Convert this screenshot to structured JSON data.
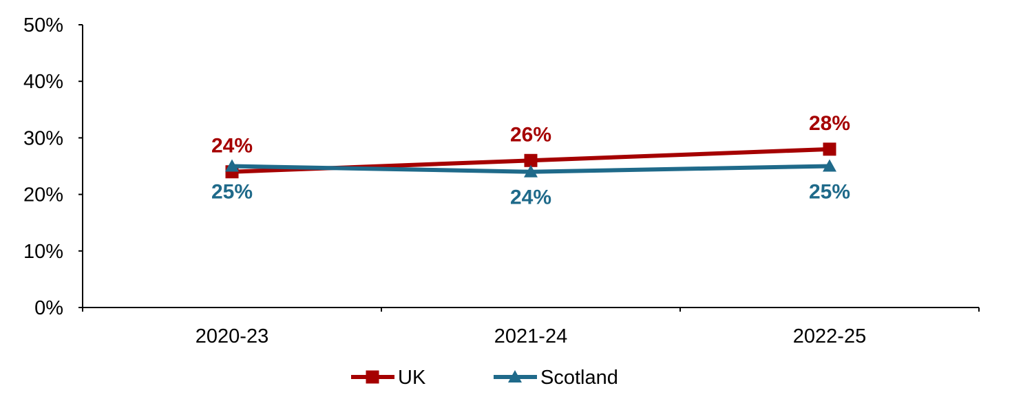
{
  "chart_data": {
    "type": "line",
    "categories": [
      "2020-23",
      "2021-24",
      "2022-25"
    ],
    "series": [
      {
        "name": "UK",
        "values": [
          24,
          26,
          28
        ],
        "labels": [
          "24%",
          "26%",
          "28%"
        ],
        "color": "#A50000",
        "marker": "square",
        "label_position": "above"
      },
      {
        "name": "Scotland",
        "values": [
          25,
          24,
          25
        ],
        "labels": [
          "25%",
          "24%",
          "25%"
        ],
        "color": "#1F6A8A",
        "marker": "triangle",
        "label_position": "below"
      }
    ],
    "ylim": [
      0,
      50
    ],
    "y_ticks": [
      "0%",
      "10%",
      "20%",
      "30%",
      "40%",
      "50%"
    ],
    "y_tick_values": [
      0,
      10,
      20,
      30,
      40,
      50
    ],
    "grid": false,
    "legend_position": "bottom-center",
    "title": "",
    "xlabel": "",
    "ylabel": ""
  }
}
